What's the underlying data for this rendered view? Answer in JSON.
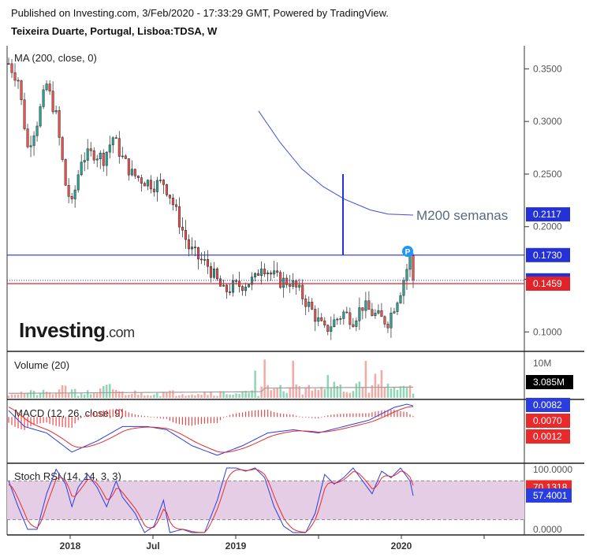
{
  "header": {
    "published": "Published on Investing.com, 3/Feb/2020 - 17:33:29 GMT, Powered by TradingView.",
    "symbol": "Teixeira Duarte, Portugal, Lisboa:TDSA, W"
  },
  "logo": {
    "text_bold": "Investing",
    "text_suffix": ".com"
  },
  "x_axis": {
    "ticks": [
      "2018",
      "Jul",
      "2019",
      "2020"
    ]
  },
  "colors": {
    "up": "#26a69a",
    "down": "#ef5350",
    "ma": "#3f4fd8",
    "blue_line": "#2430d8",
    "red_line": "#e0242a",
    "macd": "#2a3ee0",
    "signal": "#e82a2a",
    "rsi_band": "#e6cde6",
    "k": "#2a3ee0",
    "d": "#e82a2a",
    "vol_ma": "#9e9e9e"
  },
  "chart_data": [
    {
      "id": "price",
      "type": "candlestick",
      "title": "MA (200, close, 0)",
      "ylim": [
        0.083,
        0.372
      ],
      "ticks": [
        0.35,
        0.3,
        0.25,
        0.2,
        0.15,
        0.1
      ],
      "tick_labels": [
        "0.3500",
        "0.3000",
        "0.2500",
        "0.2000",
        "0.1500",
        "0.1000"
      ],
      "ma200": [
        [
          0.14,
          0.31
        ],
        [
          0.26,
          0.28
        ],
        [
          0.38,
          0.255
        ],
        [
          0.5,
          0.238
        ],
        [
          0.62,
          0.226
        ],
        [
          0.76,
          0.216
        ],
        [
          0.86,
          0.212
        ],
        [
          1.0,
          0.211
        ]
      ],
      "levels": [
        {
          "value": 0.173,
          "label": "0.1730",
          "color": "#2430d8"
        },
        {
          "value": 0.149,
          "label": "0.1490",
          "color": "#2430d8"
        },
        {
          "value": 0.1459,
          "label": "0.1459",
          "color": "#e0242a"
        },
        {
          "value": 0.2117,
          "label": "0.2117",
          "color": "#2430d8"
        }
      ],
      "annotation": "M200 semanas",
      "vline": {
        "from": 0.173,
        "to": 0.25
      },
      "marker": "P"
    },
    {
      "id": "volume",
      "type": "bar",
      "title": "Volume (20)",
      "ylim": [
        0,
        10
      ],
      "tick_labels": [
        "10M"
      ],
      "value_label": "3.085M"
    },
    {
      "id": "macd",
      "type": "line",
      "title": "MACD (12, 26, close, 9)",
      "ylim": [
        -0.028,
        0.01
      ],
      "value_labels": [
        {
          "value": 0.0082,
          "label": "0.0082",
          "color": "#2a3ee0"
        },
        {
          "value": 0.007,
          "label": "0.0070",
          "color": "#e82a2a"
        },
        {
          "value": 0.0012,
          "label": "0.0012",
          "color": "#e82a2a"
        }
      ]
    },
    {
      "id": "stochrsi",
      "type": "line",
      "title": "Stoch RSI (14, 14, 3, 3)",
      "ylim": [
        0,
        100
      ],
      "band": [
        20,
        80
      ],
      "tick_labels": [
        "100.0000",
        "0.0000"
      ],
      "value_labels": [
        {
          "value": 70.1318,
          "label": "70.1318",
          "color": "#e82a2a"
        },
        {
          "value": 57.4001,
          "label": "57.4001",
          "color": "#2a3ee0"
        }
      ]
    }
  ]
}
